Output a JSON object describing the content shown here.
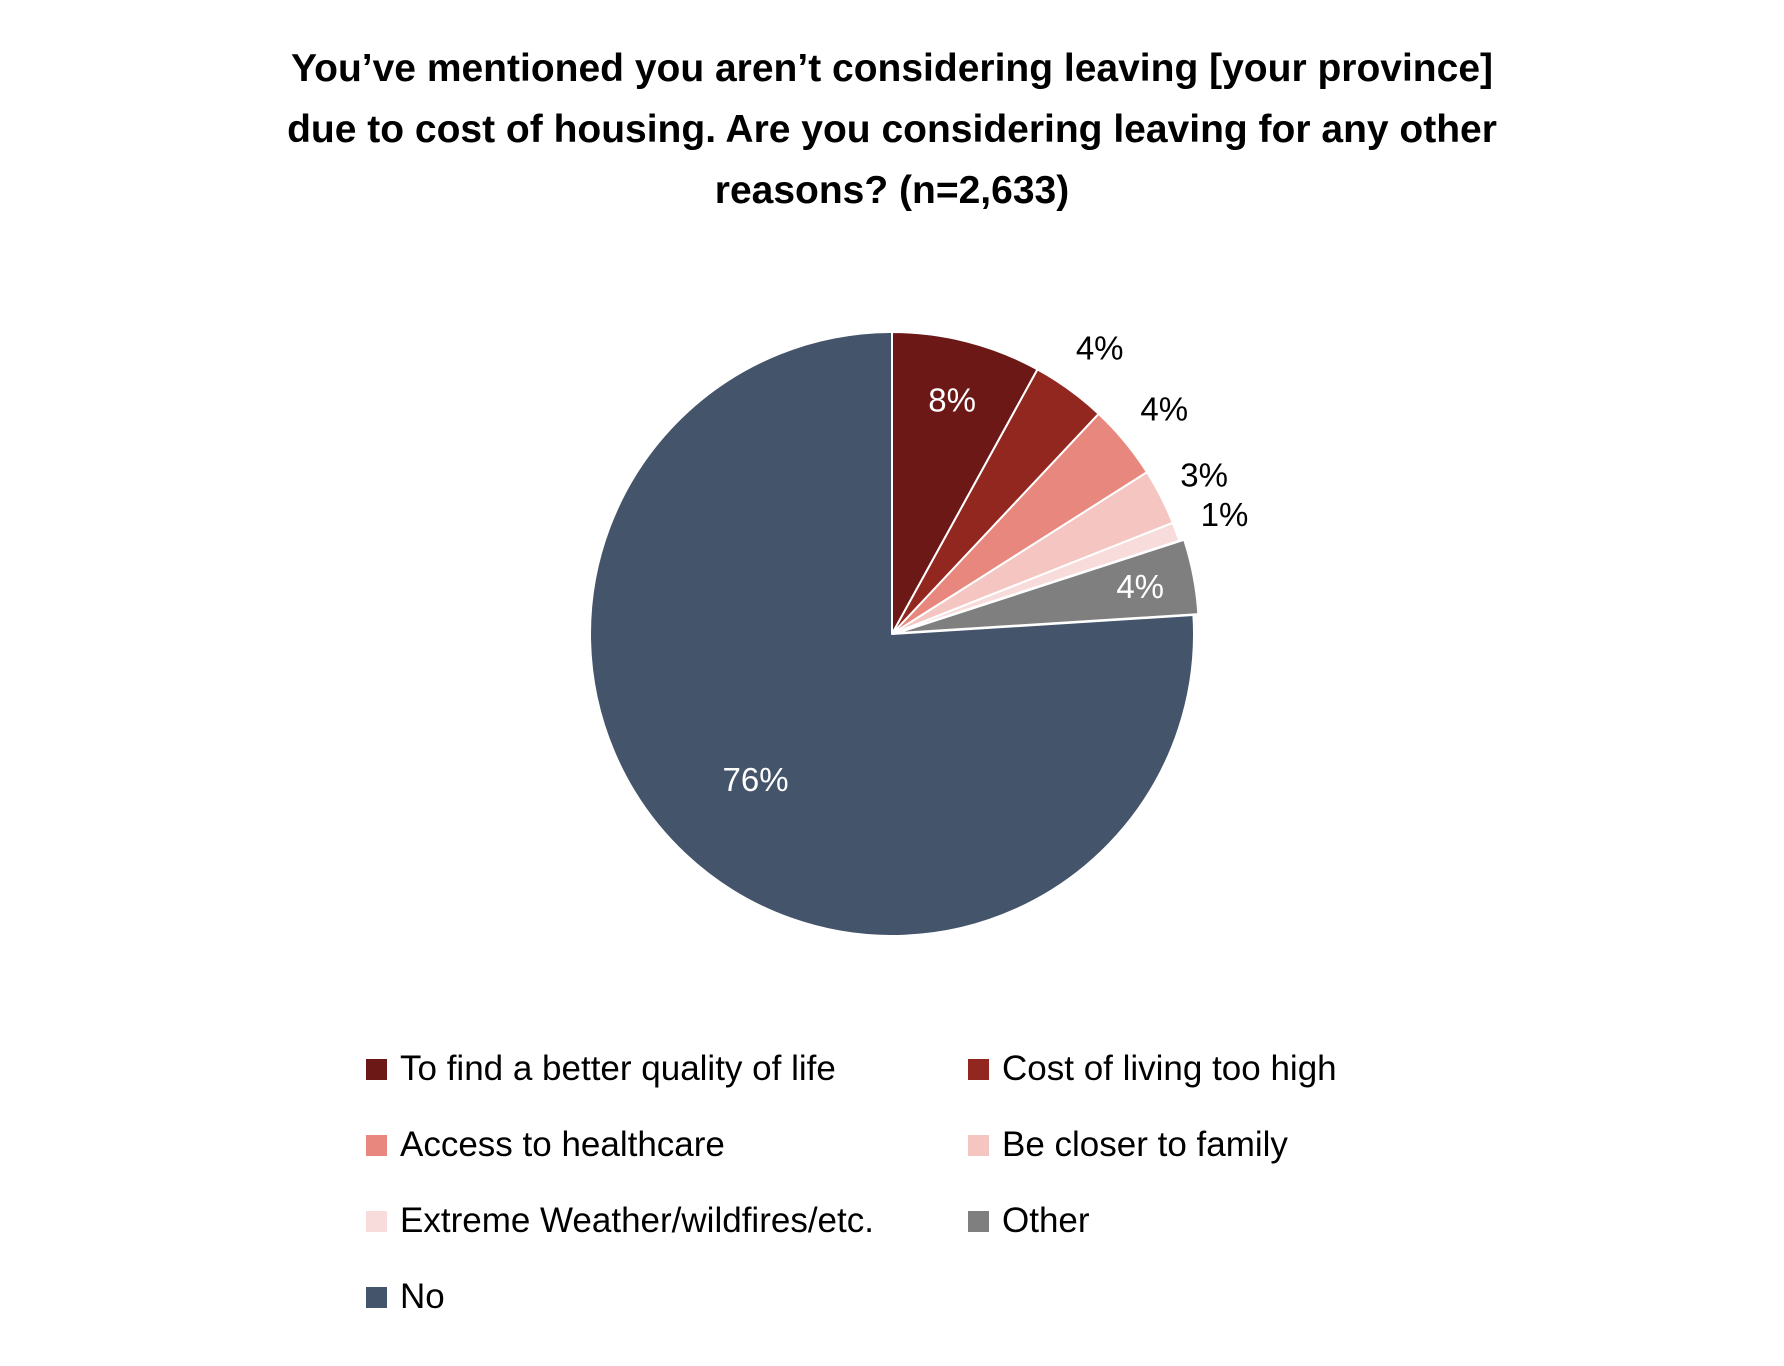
{
  "chart_data": {
    "type": "pie",
    "title": "You’ve mentioned you aren’t considering leaving [your province]\ndue to cost of housing. Are you considering leaving for any other\nreasons? (n=2,633)",
    "start_angle_deg": 0,
    "direction": "clockwise",
    "legend_position": "bottom",
    "slices": [
      {
        "label": "To find a better quality of life",
        "value": 8,
        "data_label": "8%",
        "color": "#6b1817",
        "label_color": "#ffffff"
      },
      {
        "label": "Cost of living too high",
        "value": 4,
        "data_label": "4%",
        "color": "#922720",
        "label_color": "#000000"
      },
      {
        "label": "Access to healthcare",
        "value": 4,
        "data_label": "4%",
        "color": "#e8877d",
        "label_color": "#000000"
      },
      {
        "label": "Be closer to family",
        "value": 3,
        "data_label": "3%",
        "color": "#f4c5c1",
        "label_color": "#000000"
      },
      {
        "label": "Extreme Weather/wildfires/etc.",
        "value": 1,
        "data_label": "1%",
        "color": "#f8dcdc",
        "label_color": "#000000"
      },
      {
        "label": "Other",
        "value": 4,
        "data_label": "4%",
        "color": "#7f7f7f",
        "label_color": "#ffffff"
      },
      {
        "label": "No",
        "value": 76,
        "data_label": "76%",
        "color": "#44546a",
        "label_color": "#ffffff"
      }
    ]
  }
}
